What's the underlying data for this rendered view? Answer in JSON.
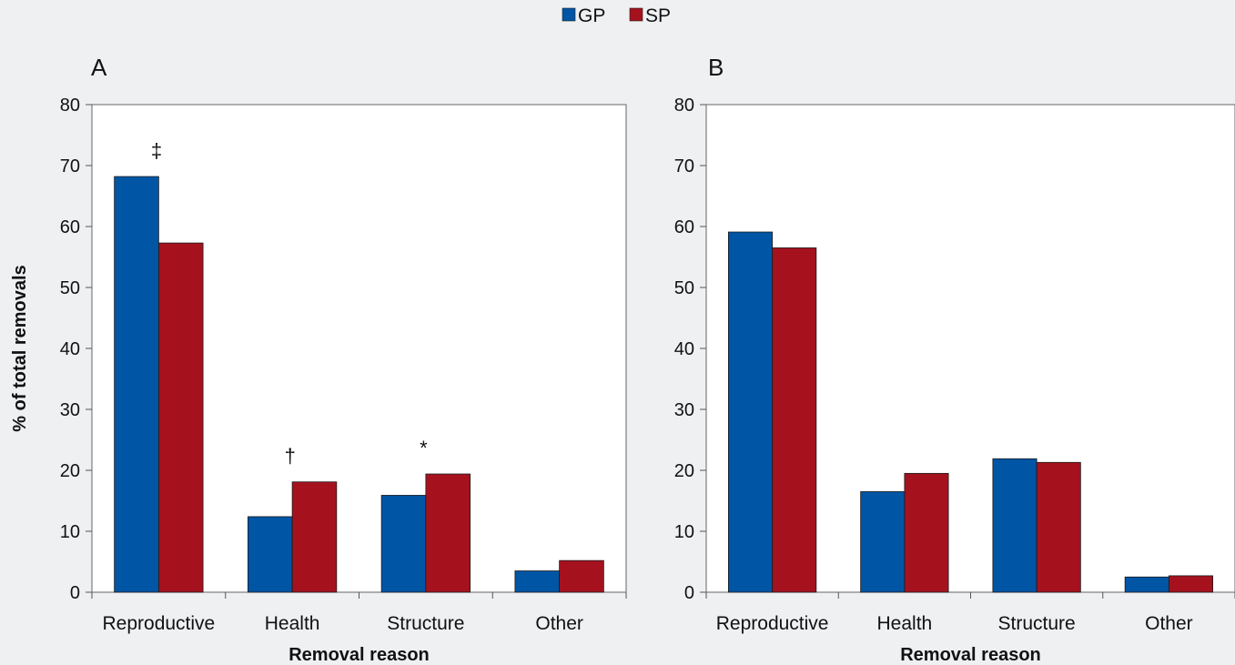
{
  "legend": [
    {
      "label": "GP",
      "color": "#0055a5"
    },
    {
      "label": "SP",
      "color": "#a5121e"
    }
  ],
  "shared_ylabel": "% of total removals",
  "chart_data": [
    {
      "type": "bar",
      "panel_label": "A",
      "categories": [
        "Reproductive",
        "Health",
        "Structure",
        "Other"
      ],
      "series": [
        {
          "name": "GP",
          "values": [
            68.2,
            12.4,
            15.9,
            3.5
          ]
        },
        {
          "name": "SP",
          "values": [
            57.3,
            18.1,
            19.4,
            5.2
          ]
        }
      ],
      "annotations": [
        {
          "category": "Reproductive",
          "text": "‡"
        },
        {
          "category": "Health",
          "text": "†"
        },
        {
          "category": "Structure",
          "text": "*"
        }
      ],
      "xlabel": "Removal reason",
      "ylabel": "% of total removals",
      "ylim": [
        0,
        80
      ],
      "yticks": [
        0,
        10,
        20,
        30,
        40,
        50,
        60,
        70,
        80
      ],
      "grid": false,
      "legend_position": "top-center"
    },
    {
      "type": "bar",
      "panel_label": "B",
      "categories": [
        "Reproductive",
        "Health",
        "Structure",
        "Other"
      ],
      "series": [
        {
          "name": "GP",
          "values": [
            59.1,
            16.5,
            21.9,
            2.5
          ]
        },
        {
          "name": "SP",
          "values": [
            56.5,
            19.5,
            21.3,
            2.7
          ]
        }
      ],
      "annotations": [],
      "xlabel": "Removal reason",
      "ylabel": "",
      "ylim": [
        0,
        80
      ],
      "yticks": [
        0,
        10,
        20,
        30,
        40,
        50,
        60,
        70,
        80
      ],
      "grid": false,
      "legend_position": "top-center"
    }
  ]
}
